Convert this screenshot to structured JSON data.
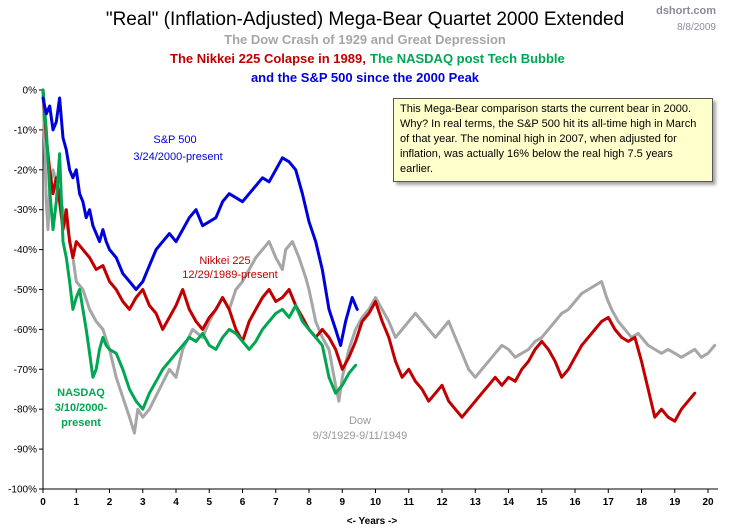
{
  "site": "dshort.com",
  "date": "8/8/2009",
  "titles": {
    "main": "\"Real\" (Inflation-Adjusted)  Mega-Bear  Quartet 2000 Extended",
    "sub1": "The Dow Crash of 1929 and Great Depression",
    "sub2a": "The Nikkei 225 Colapse in 1989,",
    "sub2b": "The NASDAQ post Tech Bubble",
    "sub3": "and the S&P 500 since the 2000  Peak"
  },
  "annotation": "This Mega-Bear comparison starts the current bear in 2000.  Why? In real terms, the S&P 500 hit its all-time high in March of that year. The nominal high in 2007, when adjusted for inflation, was actually 16% below the real high 7.5 years earlier.",
  "colors": {
    "dow": "#a6a6a6",
    "nikkei": "#c00000",
    "nasdaq": "#00a651",
    "sp500": "#0000dd"
  },
  "chart_data": {
    "type": "line",
    "xlabel": "<- Years ->",
    "ylabel": "",
    "xlim": [
      0,
      20.3
    ],
    "ylim": [
      -100,
      0
    ],
    "xticks": [
      0,
      1,
      2,
      3,
      4,
      5,
      6,
      7,
      8,
      9,
      10,
      11,
      12,
      13,
      14,
      15,
      16,
      17,
      18,
      19,
      20
    ],
    "yticks": [
      0,
      -10,
      -20,
      -30,
      -40,
      -50,
      -60,
      -70,
      -80,
      -90,
      -100
    ],
    "ytick_labels": [
      "0%",
      "-10%",
      "-20%",
      "-30%",
      "-40%",
      "-50%",
      "-60%",
      "-70%",
      "-80%",
      "-90%",
      "-100%"
    ],
    "grid": false,
    "series": [
      {
        "id": "dow",
        "name": "Dow",
        "label_lines": [
          "Dow",
          "9/3/1929-9/11/1949"
        ],
        "color": "#a6a6a6",
        "x": [
          0,
          0.1,
          0.15,
          0.2,
          0.3,
          0.4,
          0.5,
          0.6,
          0.75,
          0.9,
          1.0,
          1.2,
          1.4,
          1.6,
          1.8,
          2.0,
          2.2,
          2.4,
          2.6,
          2.75,
          2.85,
          3.0,
          3.2,
          3.5,
          3.8,
          4.0,
          4.2,
          4.5,
          4.8,
          5.0,
          5.2,
          5.4,
          5.6,
          5.8,
          6.0,
          6.2,
          6.4,
          6.6,
          6.8,
          7.0,
          7.2,
          7.3,
          7.5,
          7.7,
          7.9,
          8.0,
          8.2,
          8.4,
          8.6,
          8.8,
          8.9,
          9.0,
          9.2,
          9.4,
          9.6,
          9.8,
          10.0,
          10.2,
          10.4,
          10.6,
          10.8,
          11.0,
          11.2,
          11.4,
          11.6,
          11.8,
          12.0,
          12.2,
          12.4,
          12.6,
          12.8,
          13.0,
          13.2,
          13.4,
          13.6,
          13.8,
          14.0,
          14.2,
          14.4,
          14.6,
          14.8,
          15.0,
          15.2,
          15.4,
          15.6,
          15.8,
          16.0,
          16.2,
          16.4,
          16.6,
          16.8,
          16.95,
          17.1,
          17.3,
          17.5,
          17.7,
          17.9,
          18.0,
          18.2,
          18.4,
          18.6,
          18.8,
          19.0,
          19.2,
          19.4,
          19.6,
          19.8,
          20.0,
          20.2
        ],
        "values": [
          0,
          -28,
          -35,
          -25,
          -20,
          -23,
          -27,
          -30,
          -35,
          -42,
          -48,
          -50,
          -55,
          -58,
          -60,
          -65,
          -72,
          -77,
          -82,
          -86,
          -80,
          -82,
          -80,
          -75,
          -70,
          -72,
          -65,
          -60,
          -62,
          -58,
          -55,
          -52,
          -55,
          -50,
          -48,
          -45,
          -42,
          -40,
          -38,
          -42,
          -45,
          -40,
          -38,
          -42,
          -47,
          -50,
          -58,
          -62,
          -65,
          -74,
          -78,
          -72,
          -65,
          -60,
          -57,
          -55,
          -52,
          -55,
          -58,
          -62,
          -60,
          -58,
          -56,
          -58,
          -60,
          -62,
          -60,
          -58,
          -62,
          -66,
          -70,
          -72,
          -70,
          -68,
          -66,
          -64,
          -65,
          -67,
          -66,
          -65,
          -63,
          -62,
          -60,
          -58,
          -56,
          -55,
          -53,
          -51,
          -50,
          -49,
          -48,
          -52,
          -55,
          -58,
          -60,
          -62,
          -61,
          -62,
          -64,
          -65,
          -66,
          -65,
          -66,
          -67,
          -66,
          -65,
          -67,
          -66,
          -64
        ]
      },
      {
        "id": "nikkei",
        "name": "Nikkei 225",
        "label_lines": [
          "Nikkei 225",
          "12/29/1989-present"
        ],
        "color": "#c00000",
        "x": [
          0,
          0.1,
          0.2,
          0.3,
          0.4,
          0.5,
          0.6,
          0.7,
          0.8,
          0.9,
          1.0,
          1.2,
          1.4,
          1.6,
          1.8,
          2.0,
          2.2,
          2.4,
          2.6,
          2.8,
          3.0,
          3.2,
          3.4,
          3.6,
          3.8,
          4.0,
          4.2,
          4.4,
          4.6,
          4.8,
          5.0,
          5.2,
          5.4,
          5.6,
          5.8,
          6.0,
          6.2,
          6.4,
          6.6,
          6.8,
          7.0,
          7.2,
          7.4,
          7.6,
          7.8,
          8.0,
          8.2,
          8.4,
          8.6,
          8.8,
          9.0,
          9.2,
          9.4,
          9.6,
          9.8,
          10.0,
          10.2,
          10.4,
          10.6,
          10.8,
          11.0,
          11.2,
          11.4,
          11.6,
          11.8,
          12.0,
          12.2,
          12.4,
          12.6,
          12.8,
          13.0,
          13.2,
          13.4,
          13.6,
          13.8,
          14.0,
          14.2,
          14.4,
          14.6,
          14.8,
          15.0,
          15.2,
          15.4,
          15.6,
          15.8,
          16.0,
          16.2,
          16.4,
          16.6,
          16.8,
          17.0,
          17.2,
          17.4,
          17.6,
          17.8,
          18.0,
          18.2,
          18.4,
          18.6,
          18.8,
          19.0,
          19.2,
          19.4,
          19.6
        ],
        "values": [
          0,
          -12,
          -20,
          -26,
          -22,
          -28,
          -35,
          -30,
          -38,
          -42,
          -38,
          -40,
          -42,
          -45,
          -44,
          -48,
          -50,
          -53,
          -55,
          -52,
          -50,
          -54,
          -56,
          -60,
          -57,
          -54,
          -50,
          -55,
          -58,
          -60,
          -57,
          -55,
          -52,
          -55,
          -60,
          -63,
          -58,
          -55,
          -52,
          -50,
          -53,
          -52,
          -50,
          -54,
          -57,
          -60,
          -62,
          -60,
          -62,
          -65,
          -70,
          -67,
          -63,
          -58,
          -56,
          -53,
          -58,
          -62,
          -68,
          -72,
          -70,
          -73,
          -75,
          -78,
          -76,
          -74,
          -78,
          -80,
          -82,
          -80,
          -78,
          -76,
          -74,
          -72,
          -74,
          -72,
          -73,
          -70,
          -68,
          -65,
          -63,
          -65,
          -68,
          -72,
          -70,
          -67,
          -64,
          -62,
          -60,
          -58,
          -57,
          -60,
          -62,
          -63,
          -62,
          -68,
          -75,
          -82,
          -80,
          -82,
          -83,
          -80,
          -78,
          -76
        ]
      },
      {
        "id": "nasdaq",
        "name": "NASDAQ",
        "label_lines": [
          "NASDAQ",
          "3/10/2000-",
          "present"
        ],
        "color": "#00a651",
        "x": [
          0,
          0.1,
          0.2,
          0.3,
          0.4,
          0.5,
          0.6,
          0.7,
          0.8,
          0.9,
          1.0,
          1.1,
          1.2,
          1.3,
          1.4,
          1.5,
          1.6,
          1.7,
          1.8,
          1.9,
          2.0,
          2.2,
          2.4,
          2.6,
          2.8,
          3.0,
          3.2,
          3.4,
          3.6,
          3.8,
          4.0,
          4.2,
          4.4,
          4.6,
          4.8,
          5.0,
          5.2,
          5.4,
          5.6,
          5.8,
          6.0,
          6.2,
          6.4,
          6.6,
          6.8,
          7.0,
          7.2,
          7.4,
          7.6,
          7.8,
          8.0,
          8.2,
          8.4,
          8.6,
          8.8,
          9.0,
          9.2,
          9.4
        ],
        "values": [
          0,
          -10,
          -25,
          -35,
          -28,
          -16,
          -38,
          -42,
          -48,
          -55,
          -52,
          -50,
          -55,
          -60,
          -66,
          -72,
          -70,
          -65,
          -62,
          -64,
          -65,
          -66,
          -70,
          -75,
          -78,
          -80,
          -76,
          -73,
          -70,
          -68,
          -66,
          -64,
          -62,
          -63,
          -61,
          -64,
          -65,
          -62,
          -60,
          -61,
          -63,
          -65,
          -63,
          -60,
          -58,
          -56,
          -55,
          -57,
          -54,
          -58,
          -60,
          -62,
          -64,
          -72,
          -76,
          -74,
          -71,
          -69
        ]
      },
      {
        "id": "sp500",
        "name": "S&P 500",
        "label_lines": [
          "S&P 500",
          "3/24/2000-present"
        ],
        "color": "#0000dd",
        "x": [
          0,
          0.1,
          0.2,
          0.3,
          0.4,
          0.5,
          0.6,
          0.7,
          0.8,
          0.9,
          1.0,
          1.1,
          1.2,
          1.3,
          1.4,
          1.5,
          1.6,
          1.7,
          1.8,
          1.9,
          2.0,
          2.2,
          2.4,
          2.6,
          2.8,
          3.0,
          3.2,
          3.4,
          3.6,
          3.8,
          4.0,
          4.2,
          4.4,
          4.6,
          4.8,
          5.0,
          5.2,
          5.4,
          5.6,
          5.8,
          6.0,
          6.2,
          6.4,
          6.6,
          6.8,
          7.0,
          7.2,
          7.4,
          7.6,
          7.8,
          8.0,
          8.2,
          8.4,
          8.6,
          8.8,
          8.95,
          9.1,
          9.3,
          9.45
        ],
        "values": [
          -2,
          -6,
          -4,
          -10,
          -8,
          -2,
          -12,
          -15,
          -20,
          -22,
          -20,
          -26,
          -28,
          -32,
          -30,
          -34,
          -36,
          -38,
          -35,
          -38,
          -40,
          -42,
          -46,
          -48,
          -50,
          -48,
          -44,
          -40,
          -38,
          -36,
          -38,
          -35,
          -32,
          -30,
          -34,
          -33,
          -32,
          -28,
          -26,
          -27,
          -28,
          -26,
          -24,
          -22,
          -23,
          -20,
          -17,
          -18,
          -20,
          -26,
          -33,
          -38,
          -45,
          -55,
          -60,
          -64,
          -58,
          -52,
          -55
        ]
      }
    ]
  }
}
